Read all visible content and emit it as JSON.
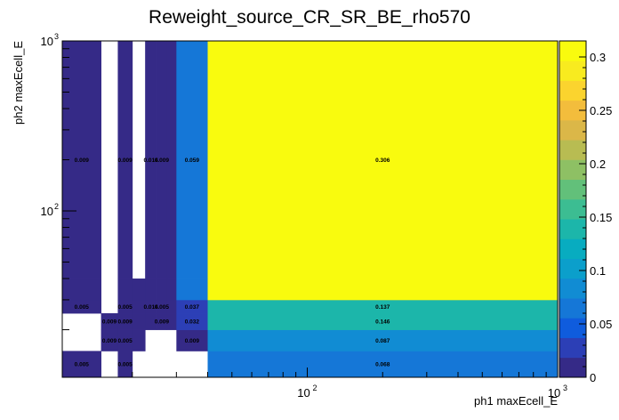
{
  "chart_data": {
    "type": "heatmap",
    "title": "Reweight_source_CR_SR_BE_rho570",
    "xlabel": "ph1 maxEcell_E",
    "ylabel": "ph2 maxEcell_E",
    "x_scale": "log",
    "y_scale": "log",
    "xlim": [
      10.5,
      1000
    ],
    "ylim": [
      10.5,
      1000
    ],
    "x_tick_labels": [
      {
        "base": "10",
        "exp": "2",
        "value": 100
      },
      {
        "base": "10",
        "exp": "3",
        "value": 1000
      }
    ],
    "y_tick_labels": [
      {
        "base": "10",
        "exp": "2",
        "value": 100
      },
      {
        "base": "10",
        "exp": "3",
        "value": 1000
      }
    ],
    "x_bin_edges": [
      10.5,
      15,
      17.5,
      20,
      22.5,
      25,
      27.5,
      30,
      40,
      1000
    ],
    "y_bin_edges": [
      10.5,
      15,
      20,
      25,
      30,
      40,
      1000
    ],
    "cells": [
      {
        "x_bin": 0,
        "y_bin": 0,
        "value": 0.005,
        "label": "0.005"
      },
      {
        "x_bin": 2,
        "y_bin": 0,
        "value": 0.005,
        "label": "0.005"
      },
      {
        "x_bin": 8,
        "y_bin": 0,
        "value": 0.068,
        "label": "0.068"
      },
      {
        "x_bin": 1,
        "y_bin": 1,
        "value": 0.009,
        "label": "0.009"
      },
      {
        "x_bin": 2,
        "y_bin": 1,
        "value": 0.005,
        "label": "0.005"
      },
      {
        "x_bin": 3,
        "y_bin": 1,
        "value": 0.005
      },
      {
        "x_bin": 7,
        "y_bin": 1,
        "value": 0.009,
        "label": "0.009"
      },
      {
        "x_bin": 8,
        "y_bin": 1,
        "value": 0.087,
        "label": "0.087"
      },
      {
        "x_bin": 1,
        "y_bin": 2,
        "value": 0.009,
        "label": "0.009"
      },
      {
        "x_bin": 2,
        "y_bin": 2,
        "value": 0.009,
        "label": "0.009"
      },
      {
        "x_bin": 3,
        "y_bin": 2,
        "value": 0.005
      },
      {
        "x_bin": 4,
        "y_bin": 2,
        "value": 0.009
      },
      {
        "x_bin": 5,
        "y_bin": 2,
        "value": 0.009,
        "label": "0.009"
      },
      {
        "x_bin": 6,
        "y_bin": 2,
        "value": 0.009
      },
      {
        "x_bin": 7,
        "y_bin": 2,
        "value": 0.032,
        "label": "0.032"
      },
      {
        "x_bin": 8,
        "y_bin": 2,
        "value": 0.146,
        "label": "0.146"
      },
      {
        "x_bin": 0,
        "y_bin": 3,
        "value": 0.005,
        "label": "0.005"
      },
      {
        "x_bin": 2,
        "y_bin": 3,
        "value": 0.005,
        "label": "0.005"
      },
      {
        "x_bin": 3,
        "y_bin": 3,
        "value": 0.005
      },
      {
        "x_bin": 4,
        "y_bin": 3,
        "value": 0.014,
        "label": "0.014"
      },
      {
        "x_bin": 5,
        "y_bin": 3,
        "value": 0.005,
        "label": "0.005"
      },
      {
        "x_bin": 6,
        "y_bin": 3,
        "value": 0.005
      },
      {
        "x_bin": 7,
        "y_bin": 3,
        "value": 0.037,
        "label": "0.037"
      },
      {
        "x_bin": 8,
        "y_bin": 3,
        "value": 0.137,
        "label": "0.137"
      },
      {
        "x_bin": 0,
        "y_bin": 4,
        "value": 0.009
      },
      {
        "x_bin": 2,
        "y_bin": 4,
        "value": 0.009
      },
      {
        "x_bin": 3,
        "y_bin": 4,
        "value": 0.009
      },
      {
        "x_bin": 4,
        "y_bin": 4,
        "value": 0.009
      },
      {
        "x_bin": 5,
        "y_bin": 4,
        "value": 0.009
      },
      {
        "x_bin": 6,
        "y_bin": 4,
        "value": 0.009
      },
      {
        "x_bin": 7,
        "y_bin": 4,
        "value": 0.059
      },
      {
        "x_bin": 8,
        "y_bin": 4,
        "value": 0.306
      },
      {
        "x_bin": 0,
        "y_bin": 5,
        "value": 0.009,
        "label": "0.009"
      },
      {
        "x_bin": 2,
        "y_bin": 5,
        "value": 0.009,
        "label": "0.009"
      },
      {
        "x_bin": 4,
        "y_bin": 5,
        "value": 0.014,
        "label": "0.014"
      },
      {
        "x_bin": 5,
        "y_bin": 5,
        "value": 0.009,
        "label": "0.009"
      },
      {
        "x_bin": 6,
        "y_bin": 5,
        "value": 0.009
      },
      {
        "x_bin": 7,
        "y_bin": 5,
        "value": 0.059,
        "label": "0.059"
      },
      {
        "x_bin": 8,
        "y_bin": 5,
        "value": 0.306,
        "label": "0.306"
      }
    ],
    "zlim": [
      0,
      0.315
    ],
    "z_ticks": [
      {
        "value": 0,
        "label": "0"
      },
      {
        "value": 0.05,
        "label": "0.05"
      },
      {
        "value": 0.1,
        "label": "0.1"
      },
      {
        "value": 0.15,
        "label": "0.15"
      },
      {
        "value": 0.2,
        "label": "0.2"
      },
      {
        "value": 0.25,
        "label": "0.25"
      },
      {
        "value": 0.3,
        "label": "0.3"
      }
    ],
    "palette": [
      "#352a87",
      "#2c3fb6",
      "#0f5cdd",
      "#1577d7",
      "#118cd3",
      "#0b9fcb",
      "#08acc0",
      "#1cb6aa",
      "#3cbd92",
      "#62c07a",
      "#8ec064",
      "#b8bc52",
      "#dbb748",
      "#f3bd3c",
      "#fbd42e",
      "#f8eb1f",
      "#f9fb0e"
    ],
    "grid": false,
    "legend": "colorbar-right"
  }
}
